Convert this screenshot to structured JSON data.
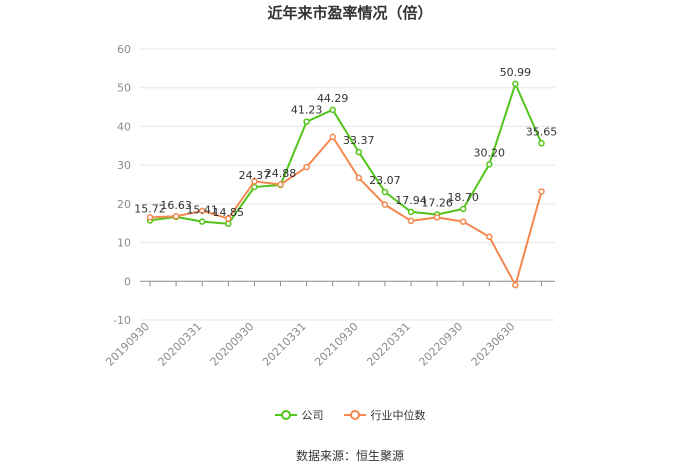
{
  "title": "近年来市盈率情况（倍）",
  "source": "数据来源：恒生聚源",
  "colors": {
    "company": "#52c41a",
    "industry": "#f5884f",
    "grid": "#e6e6e6",
    "axis": "#8c8c8c"
  },
  "chart_data": {
    "type": "line",
    "title": "近年来市盈率情况（倍）",
    "xlabel": "",
    "ylabel": "",
    "ylim": [
      -10,
      60
    ],
    "yticks": [
      -10,
      0,
      10,
      20,
      30,
      40,
      50,
      60
    ],
    "grid": true,
    "legend_position": "bottom",
    "xtick_labels": [
      "20190930",
      "20200331",
      "20200930",
      "20210331",
      "20210930",
      "20220331",
      "20220930",
      "20230630"
    ],
    "xtick_indices": [
      0,
      2,
      4,
      6,
      8,
      10,
      12,
      14
    ],
    "x_count": 16,
    "series": [
      {
        "name": "公司",
        "color": "#52c41a",
        "values": [
          15.72,
          16.63,
          15.41,
          14.85,
          24.37,
          24.88,
          41.23,
          44.29,
          33.37,
          23.07,
          17.94,
          17.26,
          18.7,
          30.2,
          50.99,
          35.65
        ],
        "labels": [
          "15.72",
          "16.63",
          "15.41",
          "14.85",
          "24.37",
          "24.88",
          "41.23",
          "44.29",
          "33.37",
          "23.07",
          "17.94",
          "17.26",
          "18.70",
          "30.20",
          "50.99",
          "35.65"
        ]
      },
      {
        "name": "行业中位数",
        "color": "#f5884f",
        "values": [
          16.5,
          16.8,
          18.2,
          16.2,
          25.8,
          25.0,
          29.5,
          37.3,
          26.7,
          19.8,
          15.6,
          16.5,
          15.4,
          11.5,
          -1.0,
          23.2
        ]
      }
    ]
  }
}
